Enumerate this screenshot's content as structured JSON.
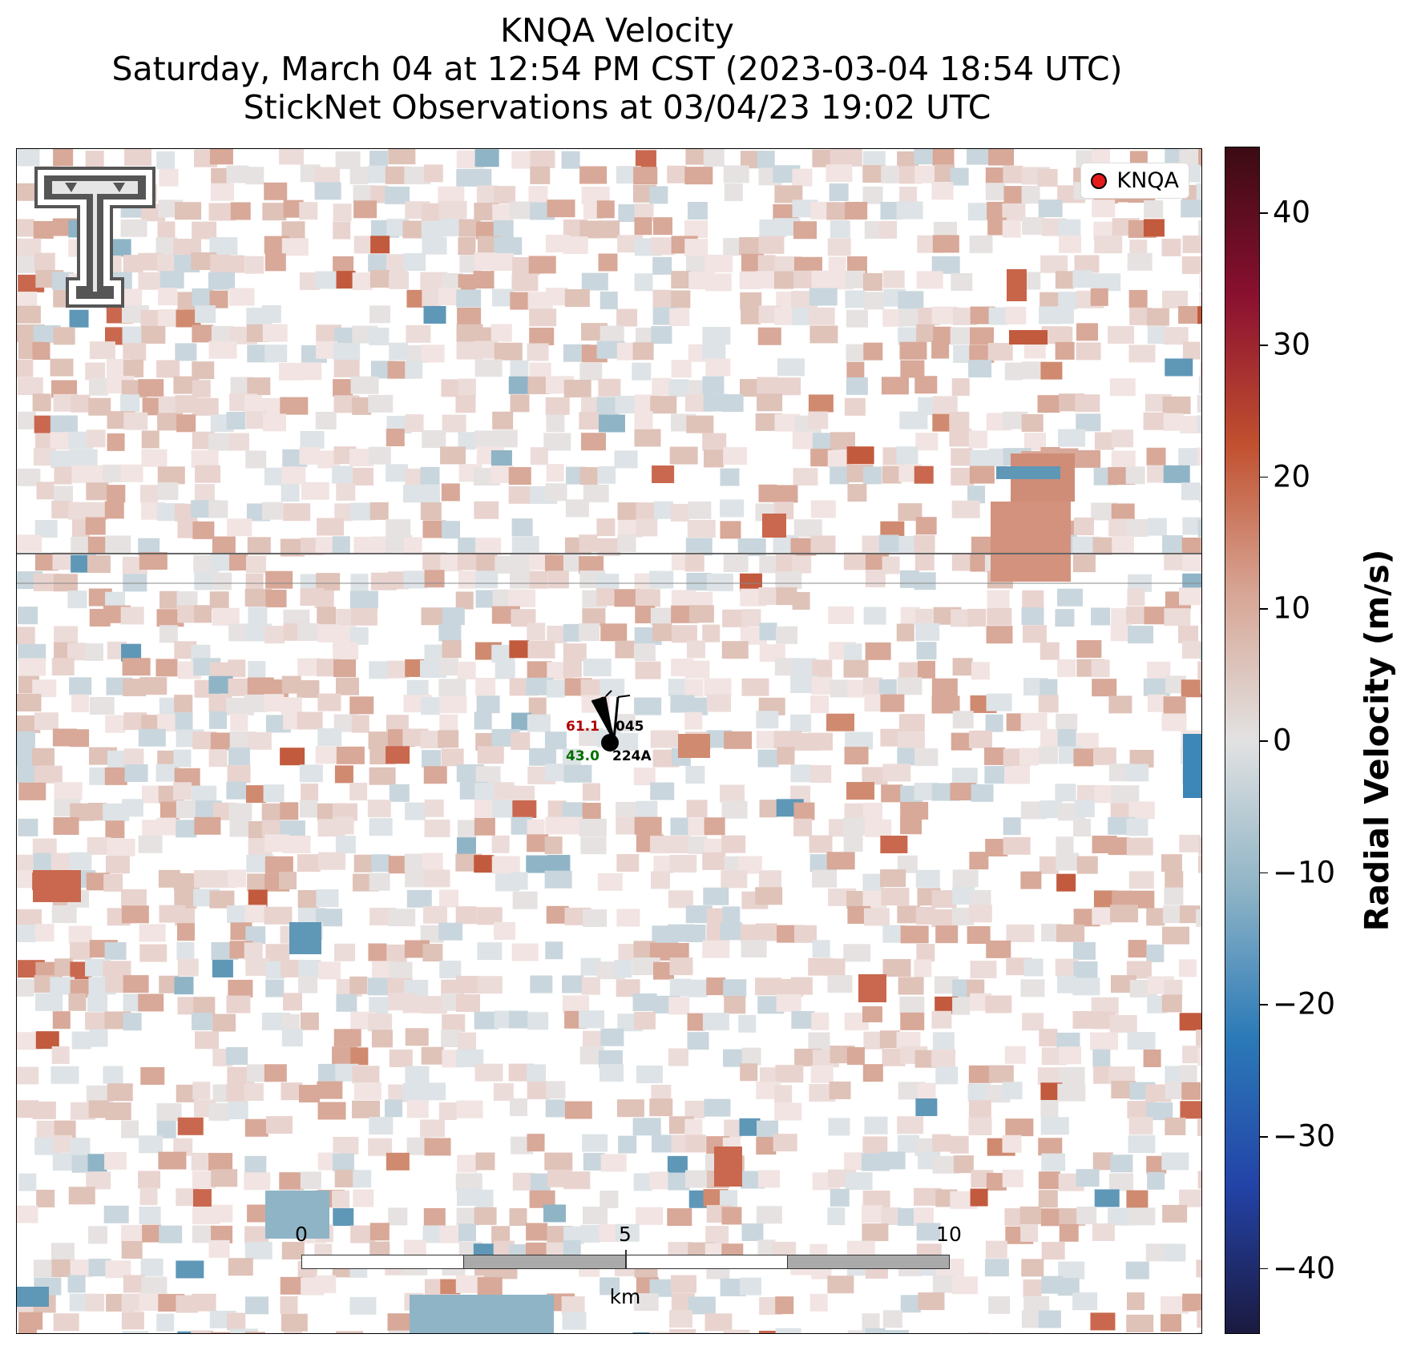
{
  "title": {
    "line1": "KNQA Velocity",
    "line2": "Saturday, March 04 at 12:54 PM CST (2023-03-04 18:54 UTC)",
    "line3": "StickNet Observations at 03/04/23 19:02 UTC"
  },
  "legend": {
    "label": "KNQA",
    "marker_color": "#e41a1c"
  },
  "logo": {
    "name": "texas-tech-double-t-logo",
    "color": "#555555"
  },
  "station": {
    "speed_value": "61.1",
    "station_id_top": "045",
    "temp_value": "43.0",
    "station_id_bottom": "224A",
    "speed_color": "#b00000",
    "temp_color": "#007000"
  },
  "scalebar": {
    "ticks": [
      "0",
      "5",
      "10"
    ],
    "unit": "km"
  },
  "colorbar": {
    "title": "Radial Velocity (m/s)",
    "min": -45,
    "max": 45,
    "ticks": [
      {
        "value": 40,
        "label": "40"
      },
      {
        "value": 30,
        "label": "30"
      },
      {
        "value": 20,
        "label": "20"
      },
      {
        "value": 10,
        "label": "10"
      },
      {
        "value": 0,
        "label": "0"
      },
      {
        "value": -10,
        "label": "−10"
      },
      {
        "value": -20,
        "label": "−20"
      },
      {
        "value": -30,
        "label": "−30"
      },
      {
        "value": -40,
        "label": "−40"
      }
    ],
    "stops": [
      "#1b1a3f",
      "#2343a8",
      "#2b7ab8",
      "#8fb4c6",
      "#e2e2e2",
      "#d7a594",
      "#c1502f",
      "#8a1030",
      "#3b0b14"
    ]
  }
}
